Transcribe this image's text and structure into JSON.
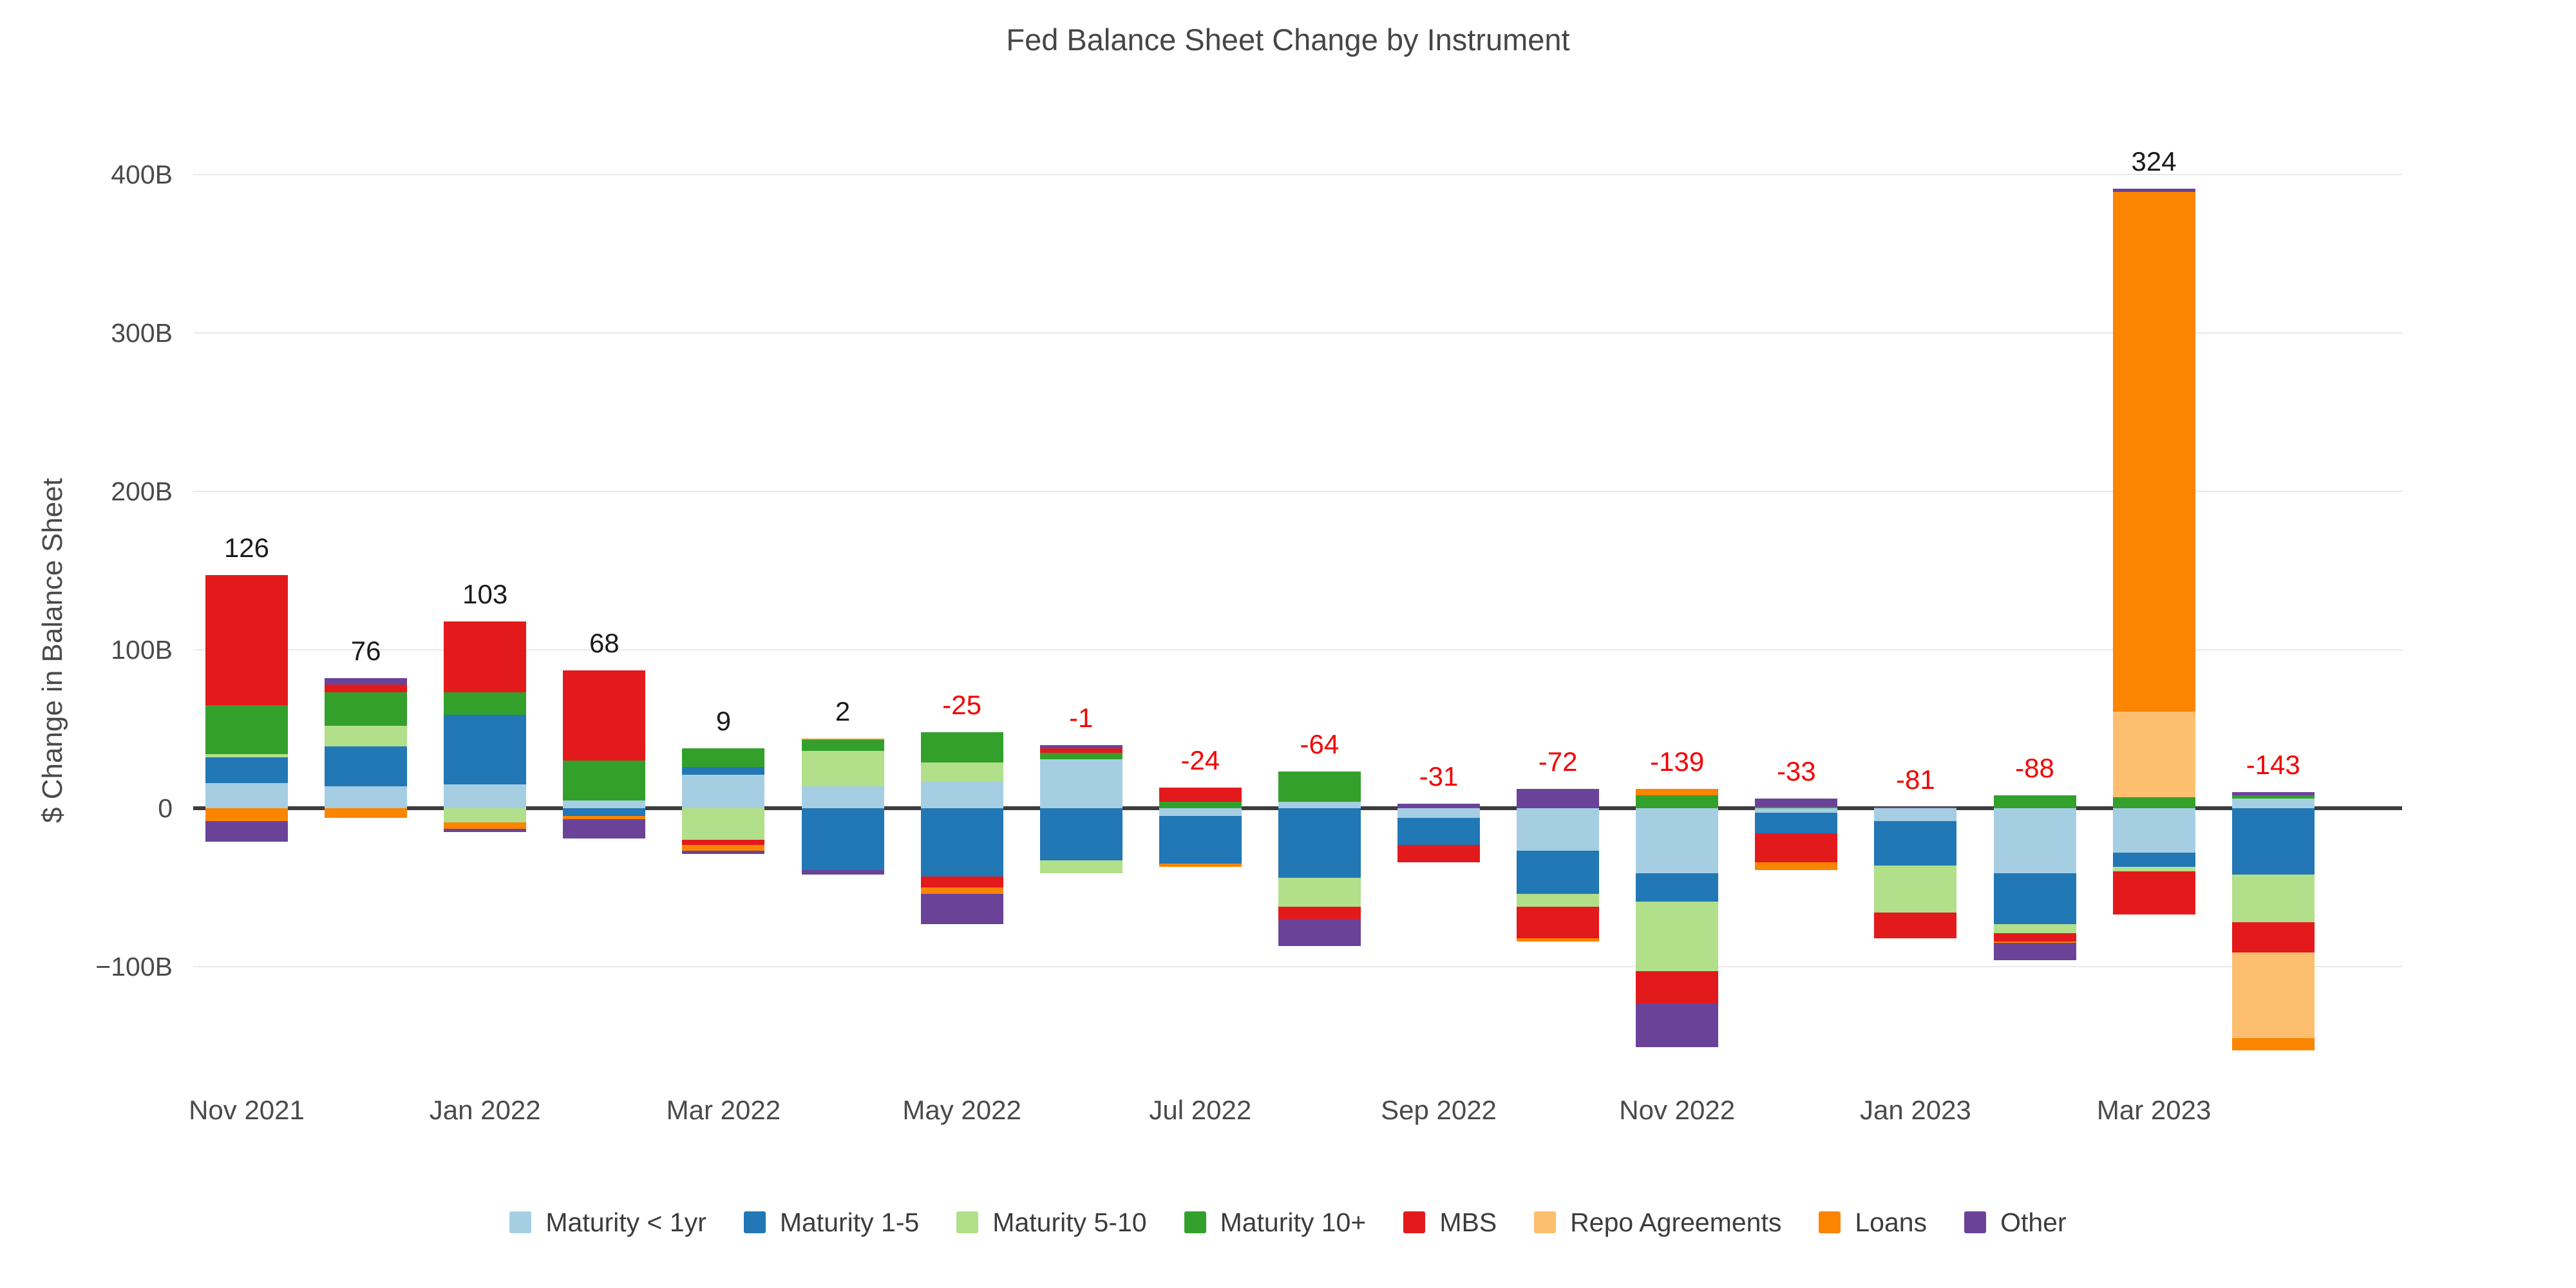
{
  "title": "Fed Balance Sheet Change by Instrument",
  "y_axis": {
    "title": "$ Change in Balance Sheet",
    "tick_labels": [
      "400B",
      "300B",
      "200B",
      "100B",
      "0",
      "−100B"
    ],
    "tick_values": [
      400,
      300,
      200,
      100,
      0,
      -100
    ]
  },
  "x_axis": {
    "tick_labels": [
      "Nov 2021",
      "Jan 2022",
      "Mar 2022",
      "May 2022",
      "Jul 2022",
      "Sep 2022",
      "Nov 2022",
      "Jan 2023",
      "Mar 2023"
    ]
  },
  "legend_items": [
    "Maturity < 1yr",
    "Maturity 1-5",
    "Maturity 5-10",
    "Maturity 10+",
    "MBS",
    "Repo Agreements",
    "Loans",
    "Other"
  ],
  "colors": {
    "background": "#ffffff",
    "gridline": "#e9e9e9",
    "zero_line": "#3d3d3d",
    "axis_text": "#4a4a4a",
    "title_text": "#464646",
    "total_positive": "#1a1a1a",
    "total_negative": "#f40000"
  },
  "chart_data": {
    "type": "bar",
    "stacked": true,
    "title": "Fed Balance Sheet Change by Instrument",
    "xlabel": "",
    "ylabel": "$ Change in Balance Sheet",
    "ylim": [
      -175,
      430
    ],
    "grid": true,
    "legend_position": "bottom",
    "categories": [
      "Nov 2021",
      "Dec 2021",
      "Jan 2022",
      "Feb 2022",
      "Mar 2022",
      "Apr 2022",
      "May 2022",
      "Jun 2022",
      "Jul 2022",
      "Aug 2022",
      "Sep 2022",
      "Oct 2022",
      "Nov 2022",
      "Dec 2022",
      "Jan 2023",
      "Feb 2023",
      "Mar 2023",
      "Apr 2023"
    ],
    "series": [
      {
        "name": "Maturity < 1yr",
        "color": "#a6cee3",
        "values": [
          16,
          14,
          15,
          5,
          21,
          14,
          17,
          31,
          -5,
          4,
          -6,
          -27,
          -41,
          -3,
          -8,
          -41,
          -28,
          6
        ]
      },
      {
        "name": "Maturity 1-5",
        "color": "#2277b5",
        "values": [
          16,
          25,
          44,
          -5,
          5,
          -39,
          -43,
          -33,
          -30,
          -44,
          -17,
          -27,
          -18,
          -13,
          -28,
          -32,
          -9,
          -42
        ]
      },
      {
        "name": "Maturity 5-10",
        "color": "#b2df8a",
        "values": [
          2,
          13,
          -9,
          0,
          -20,
          22,
          12,
          -8,
          0,
          -18,
          0,
          -8,
          -44,
          0,
          -30,
          -6,
          -3,
          -30
        ]
      },
      {
        "name": "Maturity 10+",
        "color": "#33a02c",
        "values": [
          31,
          21,
          14,
          25,
          12,
          7,
          19,
          4,
          4,
          19,
          0,
          0,
          8,
          1,
          0,
          8,
          7,
          2
        ]
      },
      {
        "name": "MBS",
        "color": "#e31a1c",
        "values": [
          82,
          5,
          45,
          57,
          -3,
          0,
          -7,
          3,
          9,
          -8,
          -11,
          -20,
          -20,
          -18,
          -16,
          -5,
          -27,
          -19
        ]
      },
      {
        "name": "Repo Agreements",
        "color": "#fdbf6f",
        "values": [
          0,
          0,
          0,
          0,
          0,
          0,
          0,
          0,
          0,
          0,
          0,
          0,
          0,
          0,
          0,
          0,
          54,
          -54
        ]
      },
      {
        "name": "Loans",
        "color": "#fb8500",
        "values": [
          -8,
          -6,
          -4,
          -2,
          -4,
          1,
          -4,
          0,
          -2,
          0,
          0,
          -2,
          4,
          -5,
          0,
          -1,
          328,
          -8
        ]
      },
      {
        "name": "Other",
        "color": "#6a4399",
        "values": [
          -13,
          4,
          -2,
          -12,
          -2,
          -3,
          -19,
          2,
          0,
          -17,
          3,
          12,
          -28,
          5,
          1,
          -11,
          2,
          2
        ]
      }
    ],
    "totals": [
      126,
      76,
      103,
      68,
      9,
      2,
      -25,
      -1,
      -24,
      -64,
      -31,
      -72,
      -139,
      -33,
      -81,
      -88,
      324,
      -143
    ]
  }
}
